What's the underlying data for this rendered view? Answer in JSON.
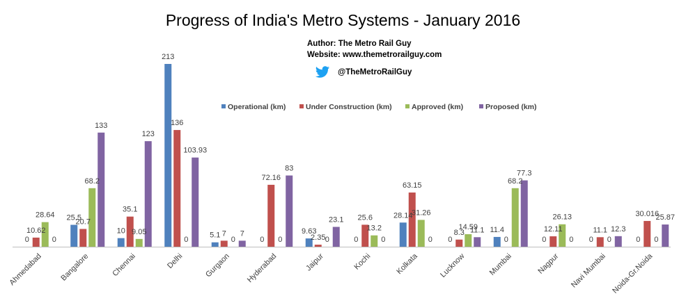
{
  "header": {
    "title": "Progress of India's Metro Systems - January 2016",
    "author": "Author: The Metro Rail Guy",
    "website": "Website: www.themetrorailguy.com",
    "twitter_handle": "@TheMetroRailGuy",
    "twitter_icon": "twitter-bird-icon",
    "twitter_color": "#1da1f2"
  },
  "chart_data": {
    "type": "bar",
    "title": "Progress of India's Metro Systems - January 2016",
    "xlabel": "",
    "ylabel": "",
    "ylim": [
      0,
      220
    ],
    "grid": false,
    "legend_position": "top-center",
    "categories": [
      "Ahmedabad",
      "Bangalore",
      "Chennai",
      "Delhi",
      "Gurgaon",
      "Hyderabad",
      "Jaipur",
      "Kochi",
      "Kolkata",
      "Lucknow",
      "Mumbai",
      "Nagpur",
      "Navi Mumbai",
      "Noida-Gr.Noida"
    ],
    "series": [
      {
        "name": "Operational (km)",
        "color": "#4f81bd",
        "values": [
          0,
          25.5,
          10,
          213,
          5.1,
          0,
          9.63,
          0,
          28.14,
          0,
          11.4,
          0,
          0,
          0
        ],
        "labels": [
          "0",
          "25.5",
          "10",
          "213",
          "5.1",
          "0",
          "9.63",
          "0",
          "28.14",
          "0",
          "11.4",
          "0",
          "0",
          "0"
        ]
      },
      {
        "name": "Under Construction (km)",
        "color": "#c0504d",
        "values": [
          10.62,
          20.7,
          35.1,
          136,
          7,
          72.16,
          2.35,
          25.6,
          63.15,
          8.3,
          0,
          12.11,
          11.1,
          30.016
        ],
        "labels": [
          "10.62",
          "20.7",
          "35.1",
          "136",
          "7",
          "72.16",
          "2.35",
          "25.6",
          "63.15",
          "8.3",
          "0",
          "12.11",
          "11.1",
          "30.016"
        ]
      },
      {
        "name": "Approved (km)",
        "color": "#9bbb59",
        "values": [
          28.64,
          68.2,
          9.05,
          0,
          0,
          0,
          0,
          13.2,
          31.26,
          14.59,
          68.2,
          26.13,
          0,
          0
        ],
        "labels": [
          "28.64",
          "68.2",
          "9.05",
          "0",
          "0",
          "0",
          "0",
          "13.2",
          "31.26",
          "14.59",
          "68.2",
          "26.13",
          "0",
          "0"
        ]
      },
      {
        "name": "Proposed (km)",
        "color": "#8064a2",
        "values": [
          0,
          133,
          123,
          103.93,
          7,
          83,
          23.1,
          0,
          0,
          11.1,
          77.3,
          0,
          12.3,
          25.87
        ],
        "labels": [
          "0",
          "133",
          "123",
          "103.93",
          "7",
          "83",
          "23.1",
          "0",
          "0",
          "11.1",
          "77.3",
          "0",
          "12.3",
          "25.87"
        ]
      }
    ]
  }
}
